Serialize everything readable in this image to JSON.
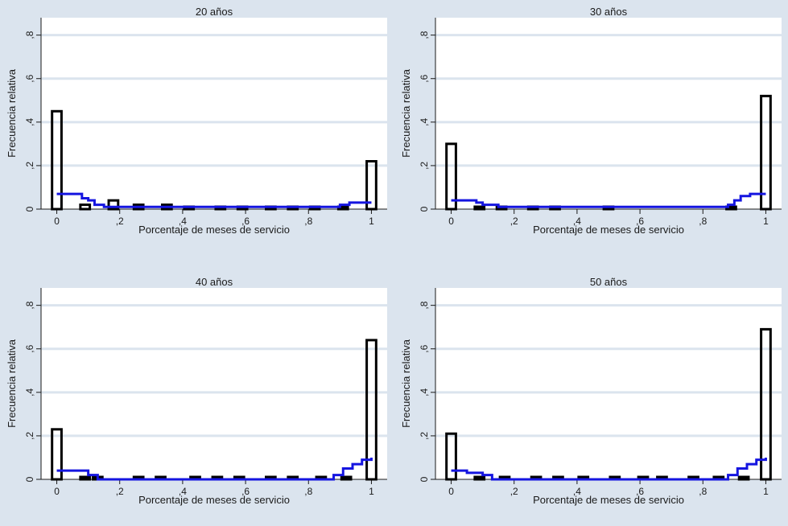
{
  "chart_data": [
    {
      "type": "bar",
      "title": "20 años",
      "xlabel": "Porcentaje de meses de servicio",
      "ylabel": "Frecuencia relativa",
      "xlim": [
        -0.05,
        1.05
      ],
      "ylim": [
        0,
        0.88
      ],
      "xticks": [
        0,
        0.2,
        0.4,
        0.6,
        0.8,
        1
      ],
      "xtick_labels": [
        "0",
        ",2",
        ",4",
        ",6",
        ",8",
        "1"
      ],
      "yticks": [
        0,
        0.2,
        0.4,
        0.6,
        0.8
      ],
      "ytick_labels": [
        "0",
        ",2",
        ",4",
        ",6",
        ",8"
      ],
      "grid": true,
      "bars": [
        {
          "x": 0.0,
          "value": 0.45
        },
        {
          "x": 0.09,
          "value": 0.02
        },
        {
          "x": 0.18,
          "value": 0.04
        },
        {
          "x": 0.26,
          "value": 0.02
        },
        {
          "x": 0.35,
          "value": 0.02
        },
        {
          "x": 0.42,
          "value": 0.01
        },
        {
          "x": 0.52,
          "value": 0.01
        },
        {
          "x": 0.59,
          "value": 0.01
        },
        {
          "x": 0.68,
          "value": 0.01
        },
        {
          "x": 0.75,
          "value": 0.01
        },
        {
          "x": 0.82,
          "value": 0.01
        },
        {
          "x": 0.91,
          "value": 0.01
        },
        {
          "x": 1.0,
          "value": 0.22
        }
      ],
      "bar_width": 0.03,
      "line": {
        "color": "#1515e0",
        "x": [
          0,
          0.05,
          0.08,
          0.1,
          0.12,
          0.15,
          0.3,
          0.5,
          0.7,
          0.85,
          0.9,
          0.93,
          1.0
        ],
        "y": [
          0.07,
          0.07,
          0.05,
          0.04,
          0.02,
          0.01,
          0.01,
          0.01,
          0.01,
          0.01,
          0.02,
          0.03,
          0.03
        ]
      }
    },
    {
      "type": "bar",
      "title": "30 años",
      "xlabel": "Porcentaje de meses de servicio",
      "ylabel": "Frecuencia relativa",
      "xlim": [
        -0.05,
        1.05
      ],
      "ylim": [
        0,
        0.88
      ],
      "xticks": [
        0,
        0.2,
        0.4,
        0.6,
        0.8,
        1
      ],
      "xtick_labels": [
        "0",
        ",2",
        ",4",
        ",6",
        ",8",
        "1"
      ],
      "yticks": [
        0,
        0.2,
        0.4,
        0.6,
        0.8
      ],
      "ytick_labels": [
        "0",
        ",2",
        ",4",
        ",6",
        ",8"
      ],
      "grid": true,
      "bars": [
        {
          "x": 0.0,
          "value": 0.3
        },
        {
          "x": 0.09,
          "value": 0.01
        },
        {
          "x": 0.16,
          "value": 0.01
        },
        {
          "x": 0.26,
          "value": 0.01
        },
        {
          "x": 0.33,
          "value": 0.01
        },
        {
          "x": 0.5,
          "value": 0.01
        },
        {
          "x": 0.89,
          "value": 0.01
        },
        {
          "x": 1.0,
          "value": 0.52
        }
      ],
      "bar_width": 0.03,
      "line": {
        "color": "#1515e0",
        "x": [
          0,
          0.05,
          0.08,
          0.1,
          0.15,
          0.3,
          0.5,
          0.7,
          0.85,
          0.88,
          0.9,
          0.92,
          0.95,
          1.0
        ],
        "y": [
          0.04,
          0.04,
          0.03,
          0.02,
          0.01,
          0.01,
          0.01,
          0.01,
          0.01,
          0.02,
          0.04,
          0.06,
          0.07,
          0.07
        ]
      }
    },
    {
      "type": "bar",
      "title": "40 años",
      "xlabel": "Porcentaje de meses de servicio",
      "ylabel": "Frecuencia relativa",
      "xlim": [
        -0.05,
        1.05
      ],
      "ylim": [
        0,
        0.88
      ],
      "xticks": [
        0,
        0.2,
        0.4,
        0.6,
        0.8,
        1
      ],
      "xtick_labels": [
        "0",
        ",2",
        ",4",
        ",6",
        ",8",
        "1"
      ],
      "yticks": [
        0,
        0.2,
        0.4,
        0.6,
        0.8
      ],
      "ytick_labels": [
        "0",
        ",2",
        ",4",
        ",6",
        ",8"
      ],
      "grid": true,
      "bars": [
        {
          "x": 0.0,
          "value": 0.23
        },
        {
          "x": 0.09,
          "value": 0.01
        },
        {
          "x": 0.13,
          "value": 0.01
        },
        {
          "x": 0.26,
          "value": 0.01
        },
        {
          "x": 0.33,
          "value": 0.01
        },
        {
          "x": 0.44,
          "value": 0.01
        },
        {
          "x": 0.51,
          "value": 0.01
        },
        {
          "x": 0.58,
          "value": 0.01
        },
        {
          "x": 0.68,
          "value": 0.01
        },
        {
          "x": 0.75,
          "value": 0.01
        },
        {
          "x": 0.84,
          "value": 0.01
        },
        {
          "x": 0.92,
          "value": 0.01
        },
        {
          "x": 1.0,
          "value": 0.64
        }
      ],
      "bar_width": 0.03,
      "line": {
        "color": "#1515e0",
        "x": [
          0,
          0.07,
          0.1,
          0.13,
          0.3,
          0.5,
          0.7,
          0.85,
          0.88,
          0.91,
          0.94,
          0.97,
          1.0
        ],
        "y": [
          0.04,
          0.04,
          0.02,
          0.0,
          0.0,
          0.0,
          0.0,
          0.0,
          0.02,
          0.05,
          0.07,
          0.09,
          0.1
        ]
      }
    },
    {
      "type": "bar",
      "title": "50 años",
      "xlabel": "Porcentaje de meses de servicio",
      "ylabel": "Frecuencia relativa",
      "xlim": [
        -0.05,
        1.05
      ],
      "ylim": [
        0,
        0.88
      ],
      "xticks": [
        0,
        0.2,
        0.4,
        0.6,
        0.8,
        1
      ],
      "xtick_labels": [
        "0",
        ",2",
        ",4",
        ",6",
        ",8",
        "1"
      ],
      "yticks": [
        0,
        0.2,
        0.4,
        0.6,
        0.8
      ],
      "ytick_labels": [
        "0",
        ",2",
        ",4",
        ",6",
        ",8"
      ],
      "grid": true,
      "bars": [
        {
          "x": 0.0,
          "value": 0.21
        },
        {
          "x": 0.09,
          "value": 0.01
        },
        {
          "x": 0.17,
          "value": 0.01
        },
        {
          "x": 0.27,
          "value": 0.01
        },
        {
          "x": 0.34,
          "value": 0.01
        },
        {
          "x": 0.42,
          "value": 0.01
        },
        {
          "x": 0.52,
          "value": 0.01
        },
        {
          "x": 0.61,
          "value": 0.01
        },
        {
          "x": 0.67,
          "value": 0.01
        },
        {
          "x": 0.77,
          "value": 0.01
        },
        {
          "x": 0.85,
          "value": 0.01
        },
        {
          "x": 0.93,
          "value": 0.01
        },
        {
          "x": 1.0,
          "value": 0.69
        }
      ],
      "bar_width": 0.03,
      "line": {
        "color": "#1515e0",
        "x": [
          0,
          0.05,
          0.1,
          0.13,
          0.3,
          0.5,
          0.7,
          0.85,
          0.88,
          0.91,
          0.94,
          0.97,
          1.0
        ],
        "y": [
          0.04,
          0.03,
          0.02,
          0.0,
          0.0,
          0.0,
          0.0,
          0.0,
          0.02,
          0.05,
          0.07,
          0.09,
          0.1
        ]
      }
    }
  ]
}
